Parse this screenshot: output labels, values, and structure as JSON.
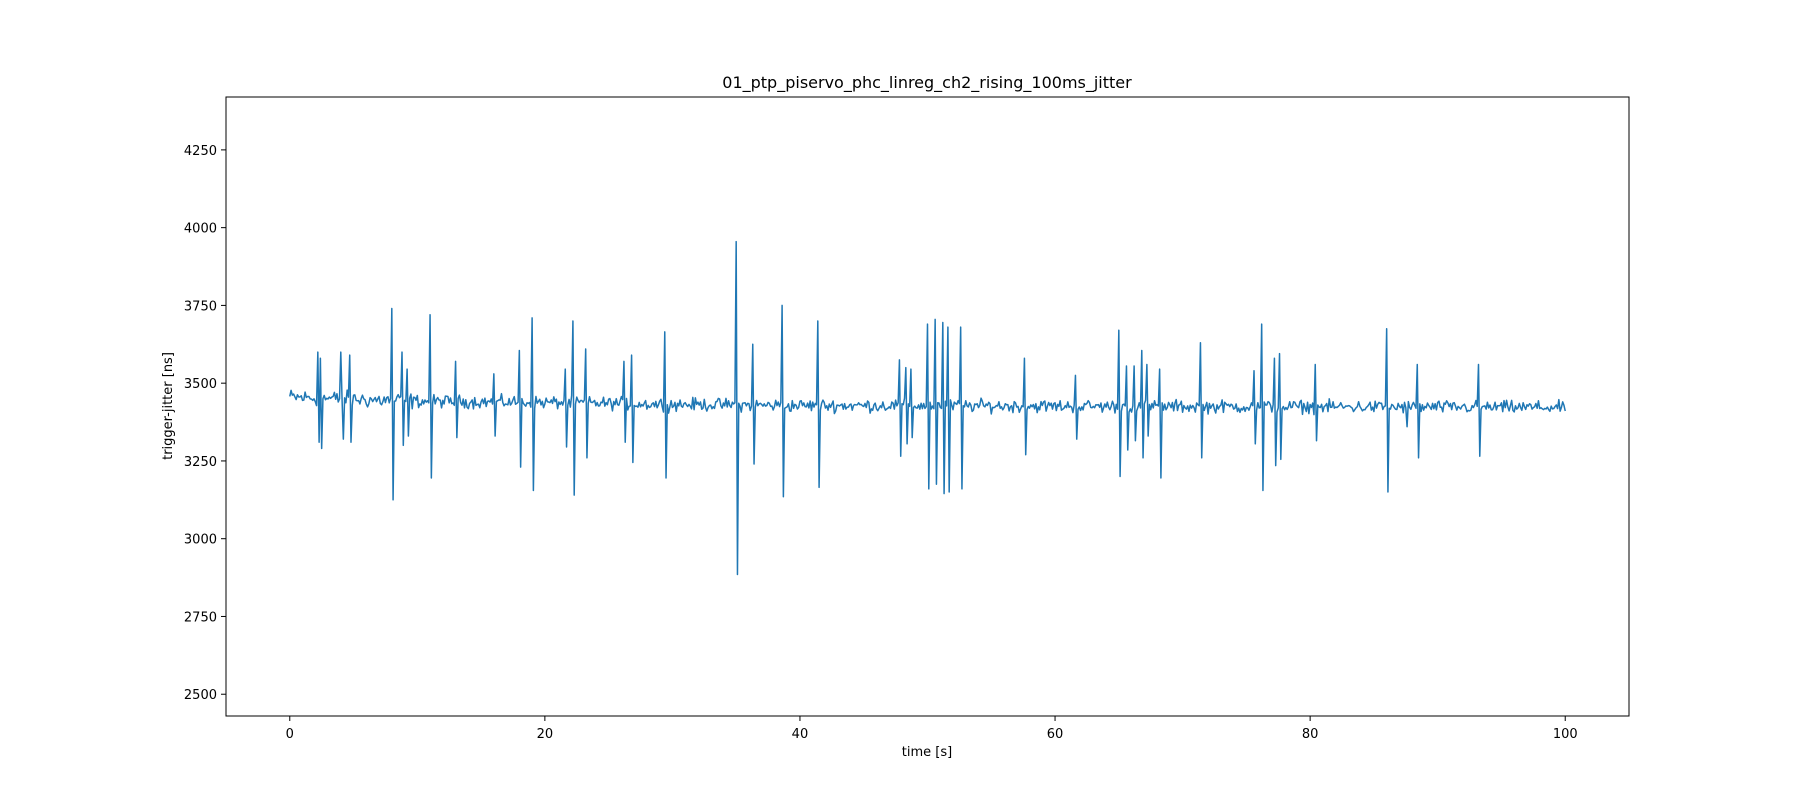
{
  "chart_data": {
    "type": "line",
    "title": "01_ptp_piservo_phc_linreg_ch2_rising_100ms_jitter",
    "xlabel": "time [s]",
    "ylabel": "trigger-jitter [ns]",
    "xlim": [
      -5,
      105
    ],
    "ylim": [
      2430,
      4420
    ],
    "xticks": [
      0,
      20,
      40,
      60,
      80,
      100
    ],
    "yticks": [
      2500,
      2750,
      3000,
      3250,
      3500,
      3750,
      4000,
      4250
    ],
    "grid": false,
    "color": "#1f77b4",
    "series": [
      {
        "baseline": {
          "t": [
            0,
            5,
            10,
            20,
            30,
            40,
            50,
            60,
            70,
            80,
            90,
            100
          ],
          "v": [
            3455,
            3448,
            3442,
            3438,
            3432,
            3428,
            3428,
            3426,
            3425,
            3424,
            3423,
            3422
          ]
        },
        "spikes": [
          [
            2.2,
            3600
          ],
          [
            2.3,
            3310
          ],
          [
            2.4,
            3580
          ],
          [
            2.5,
            3290
          ],
          [
            4.0,
            3600
          ],
          [
            4.2,
            3320
          ],
          [
            4.7,
            3590
          ],
          [
            4.8,
            3310
          ],
          [
            8.0,
            3740
          ],
          [
            8.1,
            3125
          ],
          [
            8.8,
            3600
          ],
          [
            8.9,
            3300
          ],
          [
            9.2,
            3545
          ],
          [
            9.3,
            3330
          ],
          [
            11.0,
            3720
          ],
          [
            11.1,
            3195
          ],
          [
            13.0,
            3570
          ],
          [
            13.1,
            3325
          ],
          [
            16.0,
            3530
          ],
          [
            16.1,
            3330
          ],
          [
            18.0,
            3605
          ],
          [
            18.1,
            3230
          ],
          [
            19.0,
            3710
          ],
          [
            19.1,
            3155
          ],
          [
            21.6,
            3545
          ],
          [
            21.7,
            3295
          ],
          [
            22.2,
            3700
          ],
          [
            22.3,
            3140
          ],
          [
            23.2,
            3610
          ],
          [
            23.3,
            3260
          ],
          [
            26.2,
            3570
          ],
          [
            26.3,
            3310
          ],
          [
            26.8,
            3590
          ],
          [
            26.9,
            3245
          ],
          [
            29.4,
            3665
          ],
          [
            29.5,
            3195
          ],
          [
            35.0,
            3955
          ],
          [
            35.1,
            2885
          ],
          [
            36.3,
            3625
          ],
          [
            36.4,
            3240
          ],
          [
            38.6,
            3750
          ],
          [
            38.7,
            3135
          ],
          [
            41.4,
            3700
          ],
          [
            41.5,
            3165
          ],
          [
            47.8,
            3575
          ],
          [
            47.9,
            3265
          ],
          [
            48.3,
            3550
          ],
          [
            48.4,
            3305
          ],
          [
            48.7,
            3545
          ],
          [
            48.8,
            3325
          ],
          [
            50.0,
            3690
          ],
          [
            50.1,
            3160
          ],
          [
            50.6,
            3705
          ],
          [
            50.7,
            3175
          ],
          [
            51.2,
            3695
          ],
          [
            51.3,
            3145
          ],
          [
            51.6,
            3680
          ],
          [
            51.7,
            3150
          ],
          [
            52.6,
            3680
          ],
          [
            52.7,
            3160
          ],
          [
            57.6,
            3580
          ],
          [
            57.7,
            3270
          ],
          [
            61.6,
            3525
          ],
          [
            61.7,
            3320
          ],
          [
            65.0,
            3670
          ],
          [
            65.1,
            3200
          ],
          [
            65.6,
            3555
          ],
          [
            65.7,
            3285
          ],
          [
            66.2,
            3555
          ],
          [
            66.3,
            3315
          ],
          [
            66.8,
            3605
          ],
          [
            66.9,
            3260
          ],
          [
            67.2,
            3560
          ],
          [
            67.3,
            3330
          ],
          [
            68.2,
            3545
          ],
          [
            68.3,
            3195
          ],
          [
            71.4,
            3630
          ],
          [
            71.5,
            3260
          ],
          [
            75.6,
            3540
          ],
          [
            75.7,
            3305
          ],
          [
            76.2,
            3690
          ],
          [
            76.3,
            3155
          ],
          [
            77.2,
            3580
          ],
          [
            77.3,
            3235
          ],
          [
            77.6,
            3595
          ],
          [
            77.7,
            3255
          ],
          [
            80.4,
            3560
          ],
          [
            80.5,
            3315
          ],
          [
            86.0,
            3675
          ],
          [
            86.1,
            3150
          ],
          [
            87.6,
            3360
          ],
          [
            88.4,
            3560
          ],
          [
            88.5,
            3260
          ],
          [
            93.2,
            3560
          ],
          [
            93.3,
            3265
          ]
        ]
      }
    ]
  }
}
